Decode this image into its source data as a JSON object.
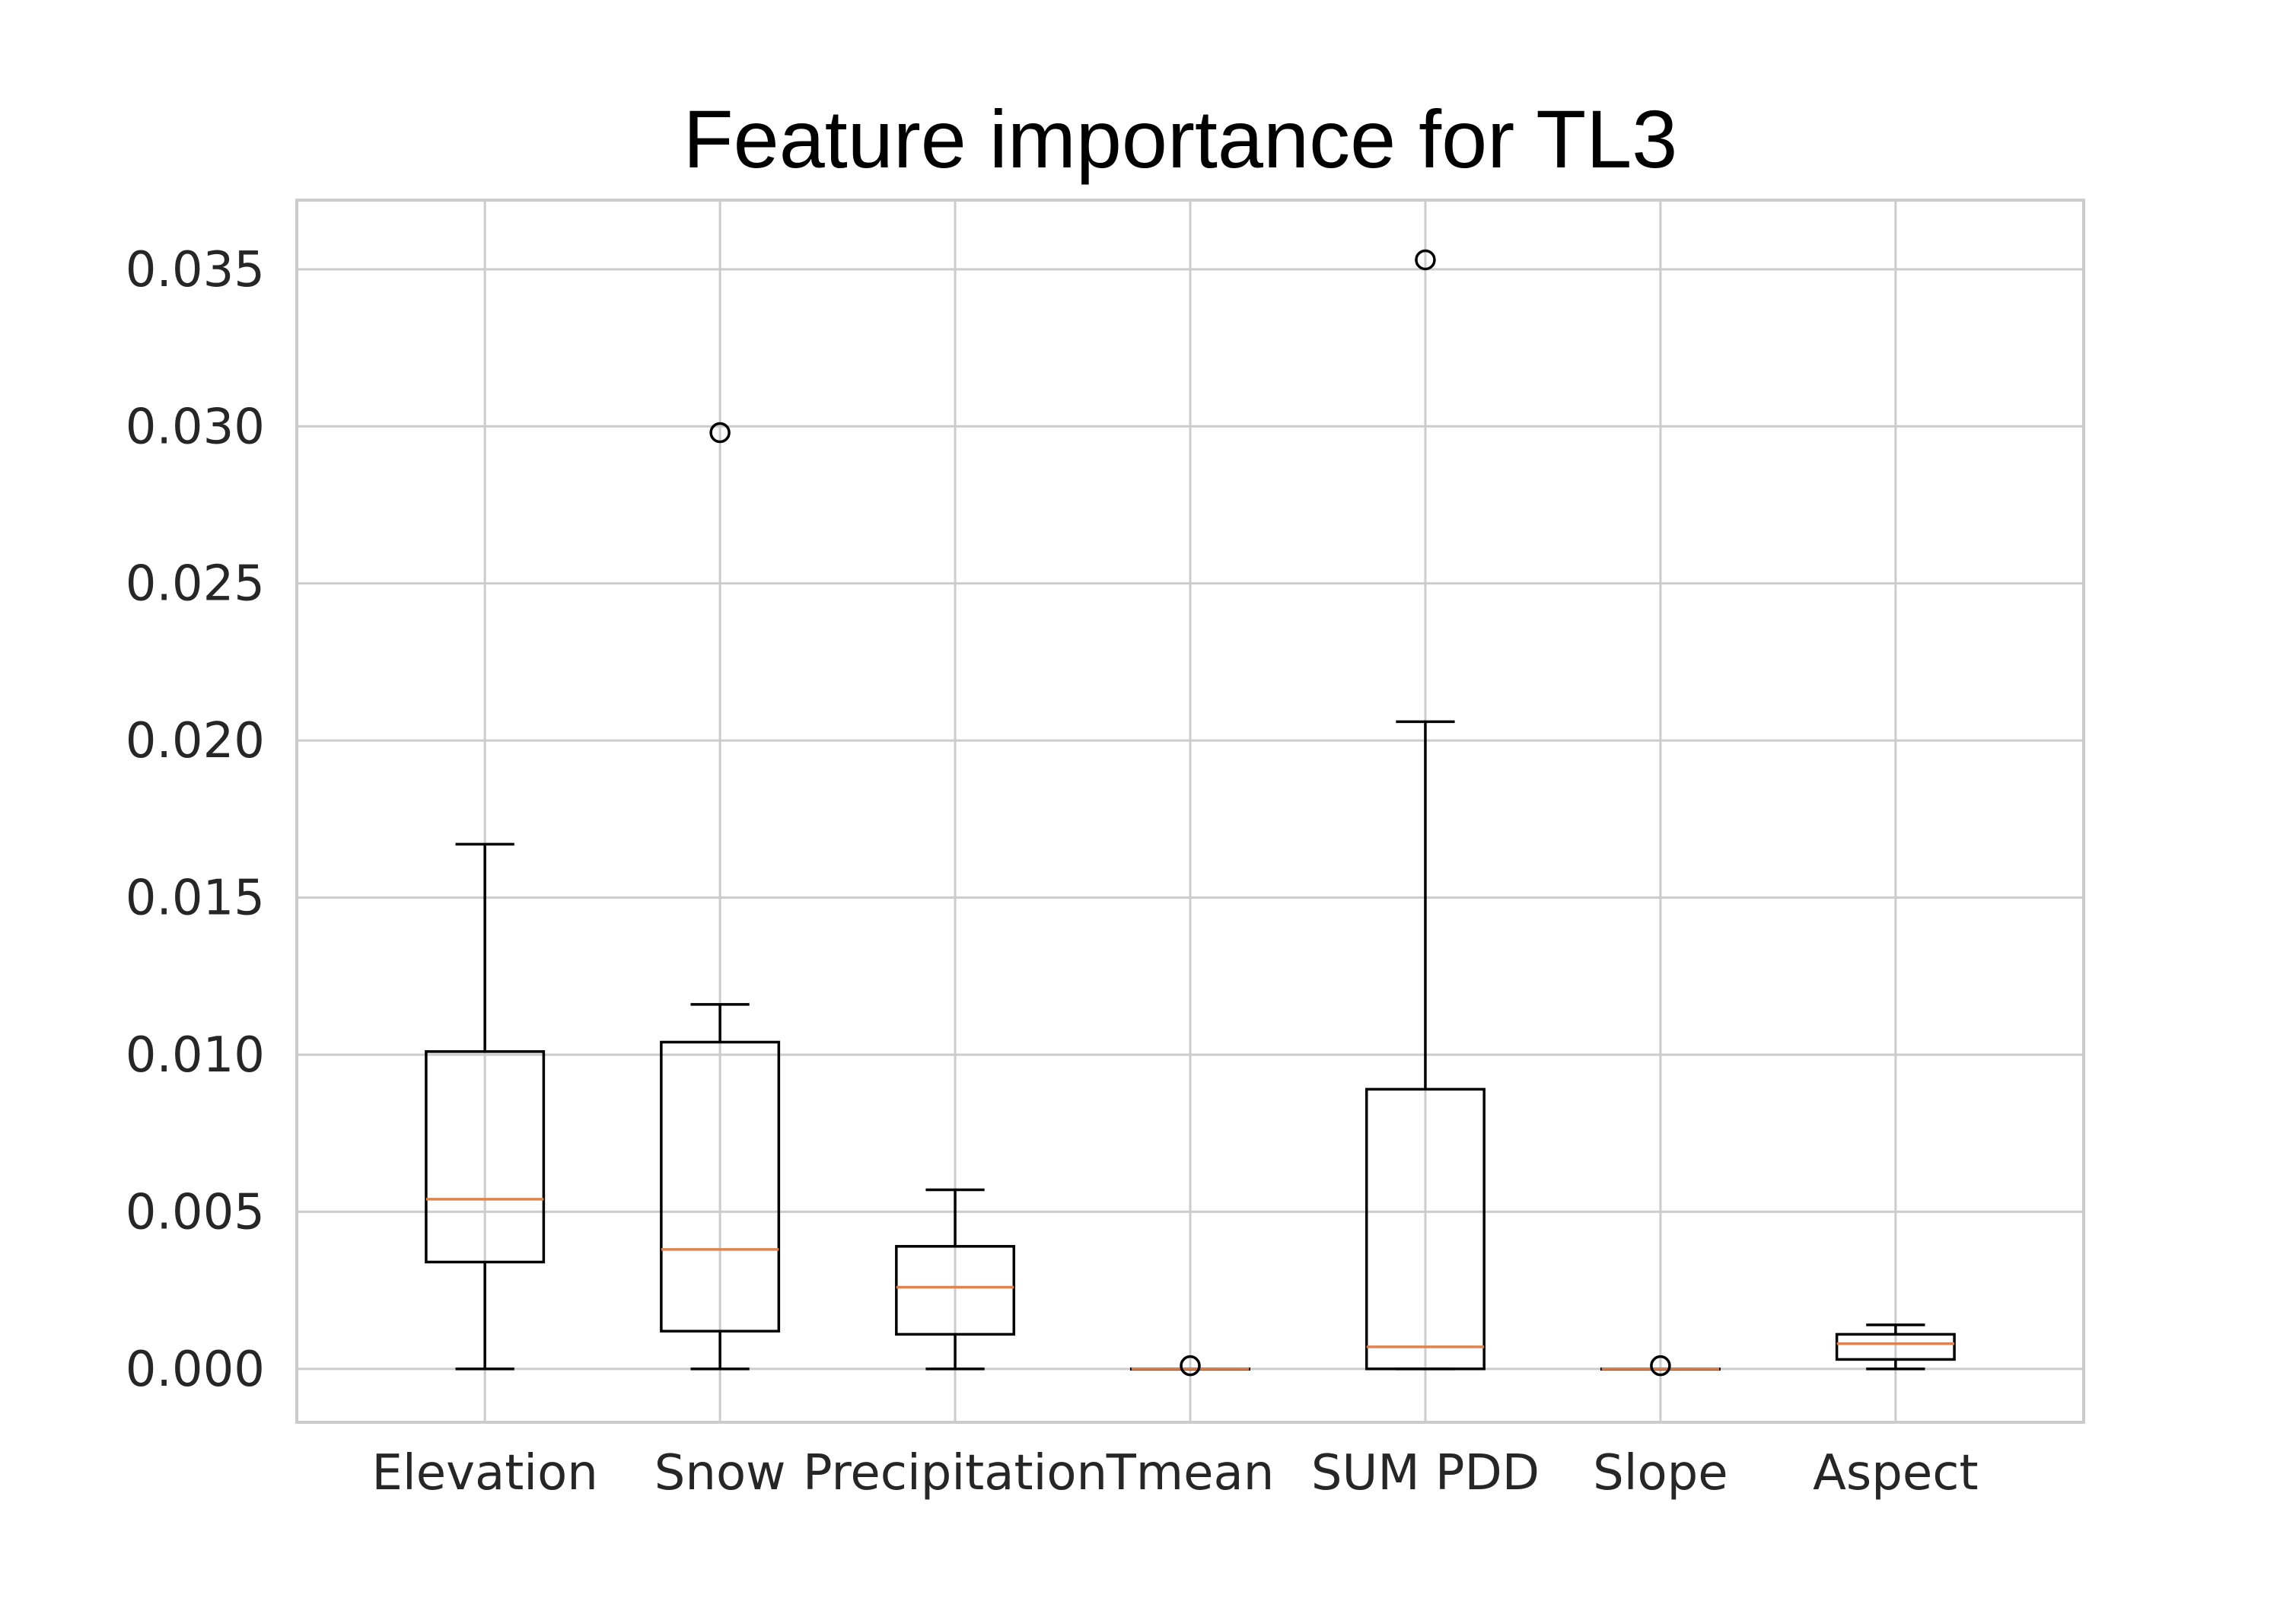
{
  "chart_data": {
    "type": "box",
    "title": "Feature importance for TL3",
    "xlabel": "",
    "ylabel": "",
    "categories": [
      "Elevation",
      "Snow",
      "Precipitation",
      "Tmean",
      "SUM PDD",
      "Slope",
      "Aspect"
    ],
    "y_ticks": [
      "0.000",
      "0.005",
      "0.010",
      "0.015",
      "0.020",
      "0.025",
      "0.030",
      "0.035"
    ],
    "ylim": [
      -0.0017,
      0.0372
    ],
    "grid": true,
    "boxes": [
      {
        "category": "Elevation",
        "whisker_low": 0.0,
        "q1": 0.0034,
        "median": 0.0054,
        "q3": 0.0101,
        "whisker_high": 0.0167,
        "outliers": []
      },
      {
        "category": "Snow",
        "whisker_low": 0.0,
        "q1": 0.0012,
        "median": 0.0038,
        "q3": 0.0104,
        "whisker_high": 0.0116,
        "outliers": [
          0.0298
        ]
      },
      {
        "category": "Precipitation",
        "whisker_low": 0.0,
        "q1": 0.0011,
        "median": 0.0026,
        "q3": 0.0039,
        "whisker_high": 0.0057,
        "outliers": []
      },
      {
        "category": "Tmean",
        "whisker_low": 0.0,
        "q1": 0.0,
        "median": 0.0,
        "q3": 0.0,
        "whisker_high": 0.0,
        "outliers": [
          0.0001
        ]
      },
      {
        "category": "SUM PDD",
        "whisker_low": 0.0,
        "q1": 0.0,
        "median": 0.0007,
        "q3": 0.0089,
        "whisker_high": 0.0206,
        "outliers": [
          0.0353
        ]
      },
      {
        "category": "Slope",
        "whisker_low": 0.0,
        "q1": 0.0,
        "median": 0.0,
        "q3": 0.0,
        "whisker_high": 0.0,
        "outliers": [
          0.0001
        ]
      },
      {
        "category": "Aspect",
        "whisker_low": 0.0,
        "q1": 0.0003,
        "median": 0.0008,
        "q3": 0.0011,
        "whisker_high": 0.0014,
        "outliers": []
      }
    ],
    "colors": {
      "box": "#000000",
      "median": "#dd8452",
      "grid": "#cccccc",
      "frame": "#cccccc",
      "tick_text": "#262626",
      "background": "#ffffff"
    }
  }
}
